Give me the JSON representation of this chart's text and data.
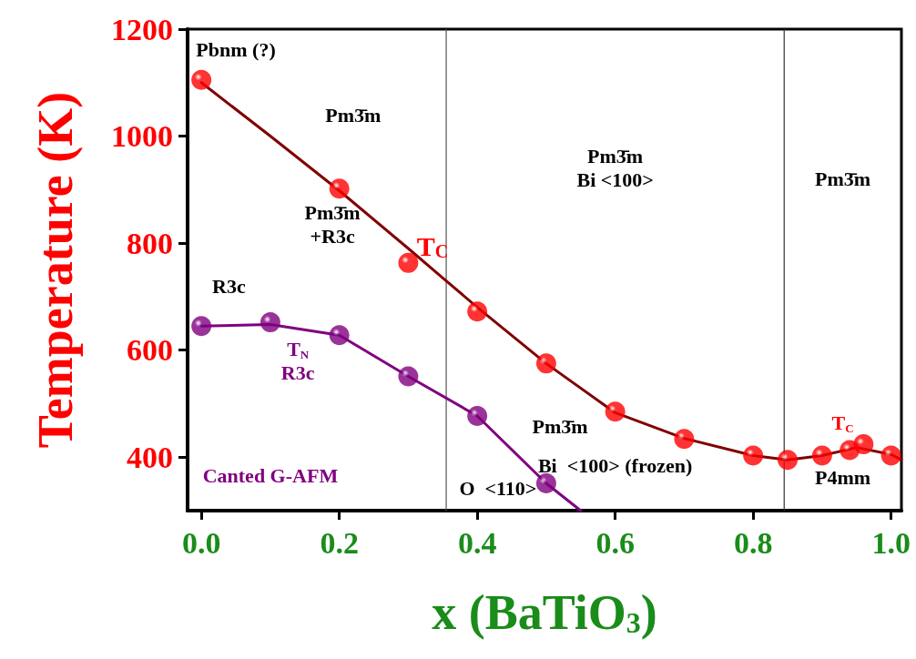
{
  "chart_data": {
    "type": "scatter",
    "xlabel": "x (BaTiO$_{3}$)",
    "ylabel": "Temperature (K)",
    "xlim": [
      -0.02,
      1.015
    ],
    "ylim": [
      300,
      1200
    ],
    "xticks": [
      {
        "value": 0,
        "label": "0.0"
      },
      {
        "value": 0.2,
        "label": "0.2"
      },
      {
        "value": 0.4,
        "label": "0.4"
      },
      {
        "value": 0.6,
        "label": "0.6"
      },
      {
        "value": 0.8,
        "label": "0.8"
      },
      {
        "value": 1,
        "label": "1.0"
      }
    ],
    "yticks": [
      400,
      600,
      800,
      1000,
      1200
    ],
    "grid": false,
    "ref_lines": [
      {
        "axis": "x",
        "value": 0.355,
        "color": "#555555"
      },
      {
        "axis": "x",
        "value": 0.845,
        "color": "#333333"
      }
    ],
    "series": [
      {
        "type": "line",
        "marker": "none",
        "color": "#800000",
        "x": [
          0,
          0.1,
          0.2,
          0.3,
          0.35,
          0.4,
          0.5,
          0.6,
          0.7,
          0.8,
          0.85,
          0.9,
          0.95,
          1.0,
          1.015
        ],
        "values": [
          1100,
          1000,
          898,
          790,
          735,
          680,
          575,
          483,
          435,
          403,
          395,
          403,
          418,
          405,
          395
        ]
      },
      {
        "type": "line",
        "marker": "none",
        "color": "#800080",
        "x": [
          0,
          0.1,
          0.2,
          0.3,
          0.4,
          0.5,
          0.55
        ],
        "values": [
          645,
          648,
          628,
          551,
          477,
          351,
          300
        ]
      },
      {
        "marker": "circle",
        "color": "#ff0000",
        "x": [
          0,
          0.2,
          0.3,
          0.4,
          0.5,
          0.6,
          0.7,
          0.8,
          0.85,
          0.9,
          0.94,
          0.96,
          1.0
        ],
        "values": [
          1105,
          902,
          763,
          672,
          575,
          485,
          434,
          403,
          395,
          403,
          413,
          424,
          403
        ]
      },
      {
        "marker": "circle",
        "color": "#800080",
        "x": [
          0,
          0.1,
          0.2,
          0.3,
          0.4,
          0.5
        ],
        "values": [
          645,
          652,
          628,
          551,
          477,
          351
        ]
      }
    ],
    "annotations": [
      "Pbnm (?)",
      "Pm3̄m",
      "Pm3̄m\n+R3c",
      "T$_{C}$",
      "R3c",
      "T$_{N}$\nR3c",
      "Canted G-AFM",
      "Pm3̄m\nBi <100>",
      "Pm3̄m",
      "Pm3̄m",
      "Bi  <100> (frozen)",
      "O  <110>",
      "T$_{C}$",
      "P4mm"
    ]
  }
}
